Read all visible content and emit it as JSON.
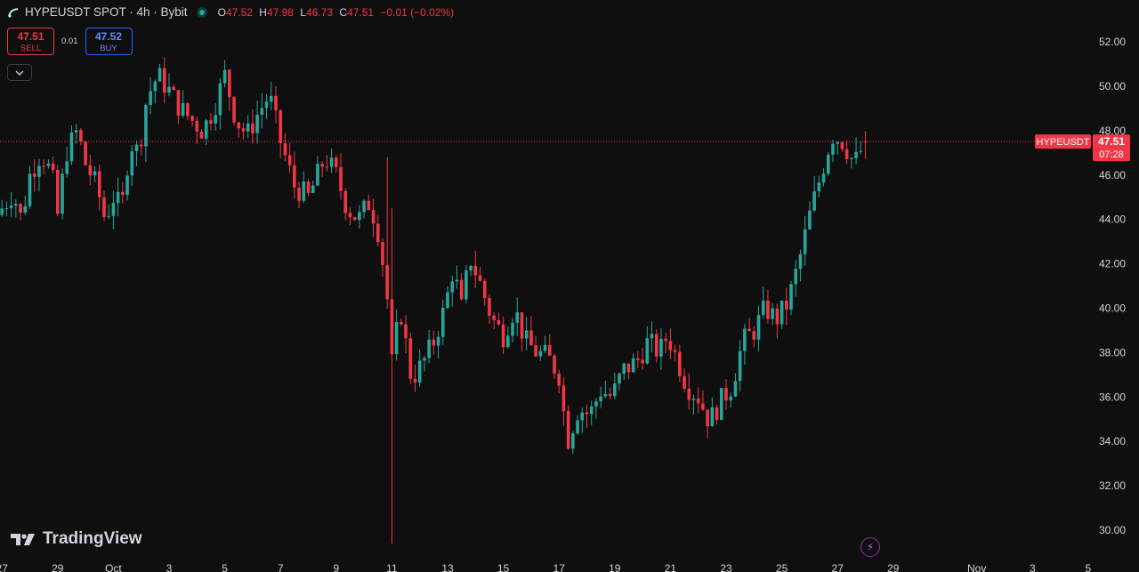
{
  "header": {
    "title": "HYPEUSDT SPOT · 4h · Bybit",
    "ohlc": [
      {
        "k": "O",
        "v": "47.52"
      },
      {
        "k": "H",
        "v": "47.98"
      },
      {
        "k": "L",
        "v": "46.73"
      },
      {
        "k": "C",
        "v": "47.51"
      }
    ],
    "change": "−0.01 (−0.02%)"
  },
  "trade": {
    "sell_price": "47.51",
    "sell_label": "SELL",
    "spread": "0.01",
    "buy_price": "47.52",
    "buy_label": "BUY"
  },
  "branding": {
    "logo_text": "TradingView"
  },
  "colors": {
    "up": "#26a69a",
    "down": "#f23645",
    "background": "#0f0f0f",
    "buy_border": "#2962ff"
  },
  "chart_data": {
    "type": "candlestick",
    "symbol_label": "HYPEUSDT",
    "last_price": "47.51",
    "countdown": "07:28",
    "y_ticks": [
      30,
      32,
      34,
      36,
      38,
      40,
      42,
      44,
      46,
      48,
      50,
      52
    ],
    "ylim": [
      29.4,
      52.6
    ],
    "x_ticks": [
      "27",
      "29",
      "Oct",
      "3",
      "5",
      "7",
      "9",
      "11",
      "13",
      "15",
      "17",
      "19",
      "21",
      "23",
      "25",
      "27",
      "29",
      "Nov",
      "3",
      "5"
    ],
    "x_tick_days": [
      -3,
      -1,
      1,
      3,
      5,
      7,
      9,
      11,
      13,
      15,
      17,
      19,
      21,
      23,
      25,
      27,
      29,
      32,
      34,
      36
    ],
    "bars_per_day": 6,
    "first_bar_day": -3.0,
    "close_path": [
      [
        -3.0,
        44.5
      ],
      [
        -2.6,
        45.2
      ],
      [
        -2.3,
        44.0
      ],
      [
        -2.0,
        46.0
      ],
      [
        -1.6,
        47.0
      ],
      [
        -1.2,
        46.0
      ],
      [
        -1.0,
        44.2
      ],
      [
        -0.7,
        47.0
      ],
      [
        -0.3,
        48.0
      ],
      [
        0.0,
        46.5
      ],
      [
        0.4,
        45.5
      ],
      [
        0.7,
        44.0
      ],
      [
        1.0,
        45.0
      ],
      [
        1.3,
        44.5
      ],
      [
        1.6,
        47.5
      ],
      [
        1.9,
        47.0
      ],
      [
        2.2,
        49.5
      ],
      [
        2.6,
        50.5
      ],
      [
        3.0,
        49.8
      ],
      [
        3.4,
        49.0
      ],
      [
        3.8,
        48.5
      ],
      [
        4.2,
        48.0
      ],
      [
        4.6,
        49.0
      ],
      [
        5.0,
        50.5
      ],
      [
        5.4,
        48.5
      ],
      [
        5.8,
        47.8
      ],
      [
        6.2,
        48.8
      ],
      [
        6.6,
        49.6
      ],
      [
        7.0,
        47.5
      ],
      [
        7.5,
        45.5
      ],
      [
        8.0,
        45.0
      ],
      [
        8.6,
        46.8
      ],
      [
        9.0,
        46.0
      ],
      [
        9.4,
        44.5
      ],
      [
        9.8,
        44.0
      ],
      [
        10.2,
        44.8
      ],
      [
        10.5,
        43.5
      ],
      [
        10.8,
        41.0
      ],
      [
        11.0,
        37.5
      ],
      [
        11.3,
        40.0
      ],
      [
        11.7,
        36.8
      ],
      [
        12.1,
        37.5
      ],
      [
        12.5,
        38.5
      ],
      [
        12.9,
        40.0
      ],
      [
        13.2,
        41.8
      ],
      [
        13.5,
        40.0
      ],
      [
        13.8,
        42.3
      ],
      [
        14.2,
        41.0
      ],
      [
        14.6,
        39.5
      ],
      [
        15.0,
        38.8
      ],
      [
        15.4,
        40.0
      ],
      [
        15.8,
        38.5
      ],
      [
        16.2,
        38.0
      ],
      [
        16.6,
        37.8
      ],
      [
        17.0,
        37.0
      ],
      [
        17.3,
        34.0
      ],
      [
        17.7,
        35.5
      ],
      [
        18.1,
        35.2
      ],
      [
        18.5,
        36.3
      ],
      [
        18.9,
        36.0
      ],
      [
        19.3,
        37.2
      ],
      [
        19.8,
        37.6
      ],
      [
        20.2,
        38.5
      ],
      [
        20.6,
        38.0
      ],
      [
        20.9,
        38.8
      ],
      [
        21.3,
        37.5
      ],
      [
        21.6,
        36.5
      ],
      [
        22.0,
        36.0
      ],
      [
        22.4,
        34.9
      ],
      [
        22.8,
        35.8
      ],
      [
        23.2,
        36.5
      ],
      [
        23.6,
        38.5
      ],
      [
        24.0,
        39.0
      ],
      [
        24.4,
        40.0
      ],
      [
        24.8,
        39.5
      ],
      [
        25.2,
        40.2
      ],
      [
        25.6,
        42.0
      ],
      [
        26.0,
        44.2
      ],
      [
        26.4,
        46.0
      ],
      [
        26.8,
        47.8
      ],
      [
        27.2,
        47.5
      ],
      [
        27.6,
        46.5
      ],
      [
        28.0,
        47.5
      ]
    ]
  }
}
